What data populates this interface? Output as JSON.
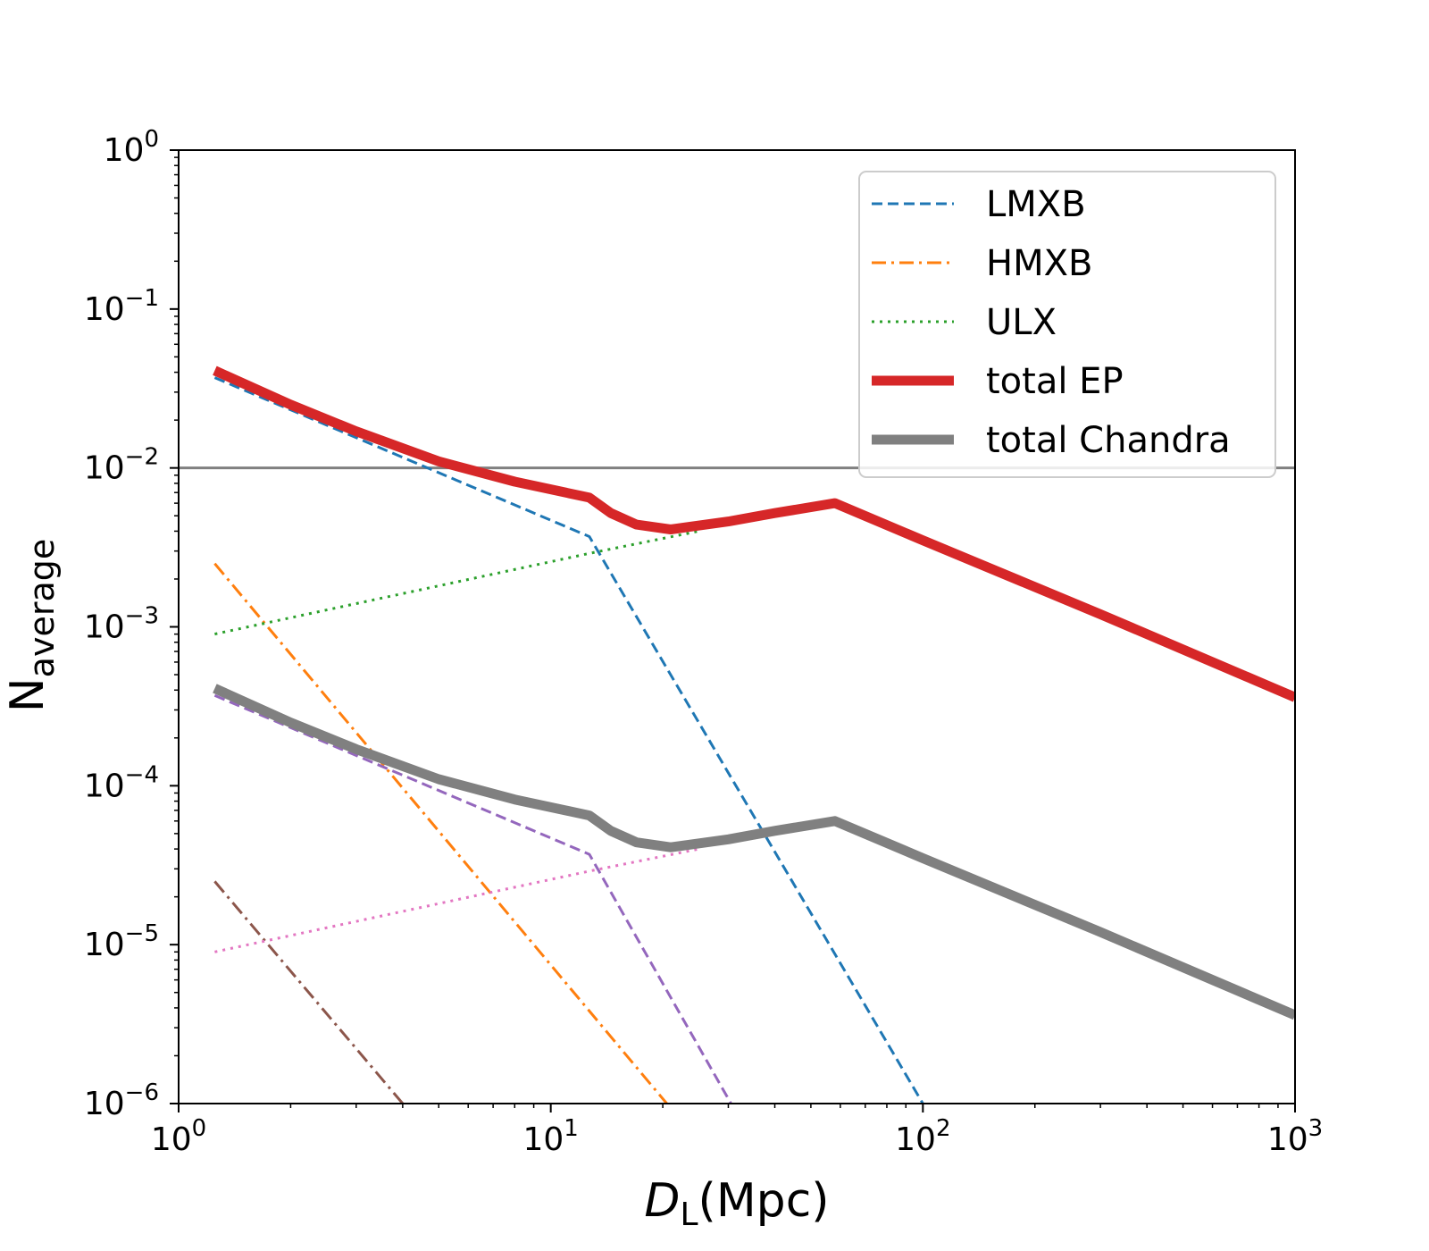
{
  "chart_data": {
    "type": "line",
    "x_scale": "log",
    "y_scale": "log",
    "xlim": [
      1,
      1000
    ],
    "ylim": [
      1e-06,
      1
    ],
    "grid": false,
    "legend_placement": "top-right",
    "xlabel": {
      "italic": "D",
      "sub": "L",
      "rest": "(Mpc)"
    },
    "ylabel": {
      "main": "N",
      "sub": "average"
    },
    "x_ticks": [
      {
        "value": 1,
        "base": "10",
        "exp": "0"
      },
      {
        "value": 10,
        "base": "10",
        "exp": "1"
      },
      {
        "value": 100,
        "base": "10",
        "exp": "2"
      },
      {
        "value": 1000,
        "base": "10",
        "exp": "3"
      }
    ],
    "y_ticks": [
      {
        "value": 1,
        "base": "10",
        "exp": "0"
      },
      {
        "value": 0.1,
        "base": "10",
        "exp": "−1"
      },
      {
        "value": 0.01,
        "base": "10",
        "exp": "−2"
      },
      {
        "value": 0.001,
        "base": "10",
        "exp": "−3"
      },
      {
        "value": 0.0001,
        "base": "10",
        "exp": "−4"
      },
      {
        "value": 1e-05,
        "base": "10",
        "exp": "−5"
      },
      {
        "value": 1e-06,
        "base": "10",
        "exp": "−6"
      }
    ],
    "reference_lines": [
      {
        "y": 0.01,
        "color": "#808080"
      }
    ],
    "series": [
      {
        "name": "LMXB",
        "color": "#1f77b4",
        "style": "dashed",
        "width": 3,
        "points": [
          [
            1.25,
            0.037
          ],
          [
            12.7,
            0.0037
          ],
          [
            100,
            1e-06
          ]
        ]
      },
      {
        "name": "HMXB",
        "color": "#ff7f0e",
        "style": "dashdot",
        "width": 3,
        "points": [
          [
            1.25,
            0.0025
          ],
          [
            20.5,
            1e-06
          ]
        ]
      },
      {
        "name": "ULX",
        "color": "#2ca02c",
        "style": "dotted",
        "width": 3,
        "points": [
          [
            1.25,
            0.0009
          ],
          [
            12.7,
            0.0029
          ],
          [
            25,
            0.004
          ]
        ]
      },
      {
        "name": "total EP",
        "color": "#d62728",
        "style": "solid",
        "width": 11,
        "points": [
          [
            1.25,
            0.041
          ],
          [
            2,
            0.025
          ],
          [
            3,
            0.017
          ],
          [
            5,
            0.011
          ],
          [
            8,
            0.0082
          ],
          [
            12.7,
            0.0065
          ],
          [
            14.5,
            0.0052
          ],
          [
            17,
            0.0044
          ],
          [
            21,
            0.0041
          ],
          [
            30,
            0.0046
          ],
          [
            40,
            0.0052
          ],
          [
            58,
            0.006
          ],
          [
            100,
            0.0035
          ],
          [
            300,
            0.0012
          ],
          [
            1000,
            0.00036
          ]
        ]
      },
      {
        "name": "total Chandra",
        "color": "#808080",
        "style": "solid",
        "width": 11,
        "points": [
          [
            1.25,
            0.00041
          ],
          [
            2,
            0.00025
          ],
          [
            3,
            0.00017
          ],
          [
            5,
            0.00011
          ],
          [
            8,
            8.2e-05
          ],
          [
            12.7,
            6.5e-05
          ],
          [
            14.5,
            5.2e-05
          ],
          [
            17,
            4.4e-05
          ],
          [
            21,
            4.1e-05
          ],
          [
            30,
            4.6e-05
          ],
          [
            40,
            5.2e-05
          ],
          [
            58,
            6e-05
          ],
          [
            100,
            3.5e-05
          ],
          [
            300,
            1.2e-05
          ],
          [
            1000,
            3.6e-06
          ]
        ]
      },
      {
        "color": "#9467bd",
        "style": "dashed",
        "width": 3,
        "points": [
          [
            1.25,
            0.00037
          ],
          [
            12.7,
            3.7e-05
          ],
          [
            30.5,
            1e-06
          ]
        ]
      },
      {
        "color": "#8c564b",
        "style": "dashdot",
        "width": 3,
        "points": [
          [
            1.25,
            2.5e-05
          ],
          [
            4,
            1e-06
          ]
        ]
      },
      {
        "color": "#e377c2",
        "style": "dotted",
        "width": 3,
        "points": [
          [
            1.25,
            9e-06
          ],
          [
            12.7,
            2.9e-05
          ],
          [
            25,
            4e-05
          ]
        ]
      }
    ],
    "legend": [
      "LMXB",
      "HMXB",
      "ULX",
      "total EP",
      "total Chandra"
    ]
  }
}
